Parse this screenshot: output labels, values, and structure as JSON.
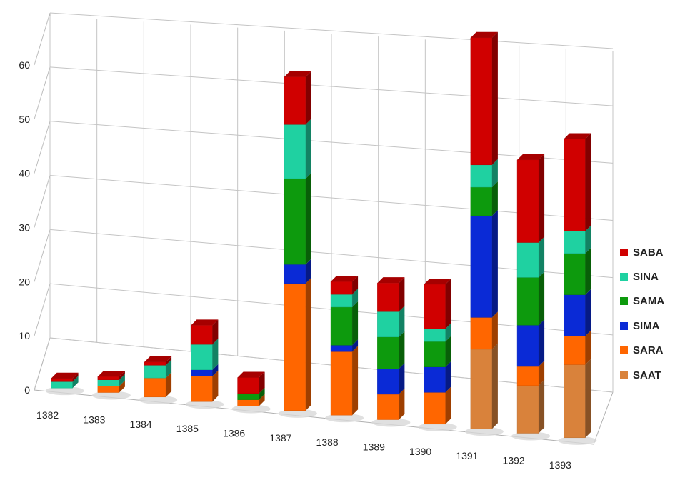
{
  "chart_data": {
    "type": "bar",
    "subtype": "stacked-3d-column",
    "categories": [
      "1382",
      "1383",
      "1384",
      "1385",
      "1386",
      "1387",
      "1388",
      "1389",
      "1390",
      "1391",
      "1392",
      "1393"
    ],
    "ylim": [
      0,
      60
    ],
    "yticks": [
      0,
      10,
      20,
      30,
      40,
      50,
      60
    ],
    "grid": true,
    "legend_position": "right",
    "series": [
      {
        "name": "SAAT",
        "color": "#d9823b",
        "values": [
          0,
          0,
          0,
          0,
          0,
          0,
          0,
          0,
          0,
          12.5,
          7.5,
          11.5
        ]
      },
      {
        "name": "SARA",
        "color": "#ff6600",
        "values": [
          0,
          1,
          3,
          4,
          1,
          20,
          10,
          4,
          5,
          5,
          3,
          4.5
        ]
      },
      {
        "name": "SIMA",
        "color": "#0a2ad6",
        "values": [
          0,
          0,
          0,
          1,
          0,
          3,
          1,
          4,
          4,
          16,
          6.5,
          6.5
        ]
      },
      {
        "name": "SAMA",
        "color": "#0d9a0d",
        "values": [
          0,
          0,
          0,
          0,
          1,
          13.5,
          6,
          5,
          4,
          4.5,
          7.5,
          6.5
        ]
      },
      {
        "name": "SINA",
        "color": "#1fd1a1",
        "values": [
          1,
          1,
          2,
          4,
          0,
          8.5,
          2,
          4,
          2,
          3.5,
          5.5,
          3.5
        ]
      },
      {
        "name": "SABA",
        "color": "#d00000",
        "values": [
          0.5,
          0.5,
          0.5,
          3,
          2.5,
          7.5,
          2,
          4.5,
          7,
          20,
          13,
          14.5
        ]
      }
    ]
  },
  "legend": {
    "order": [
      "SABA",
      "SINA",
      "SAMA",
      "SIMA",
      "SARA",
      "SAAT"
    ]
  }
}
